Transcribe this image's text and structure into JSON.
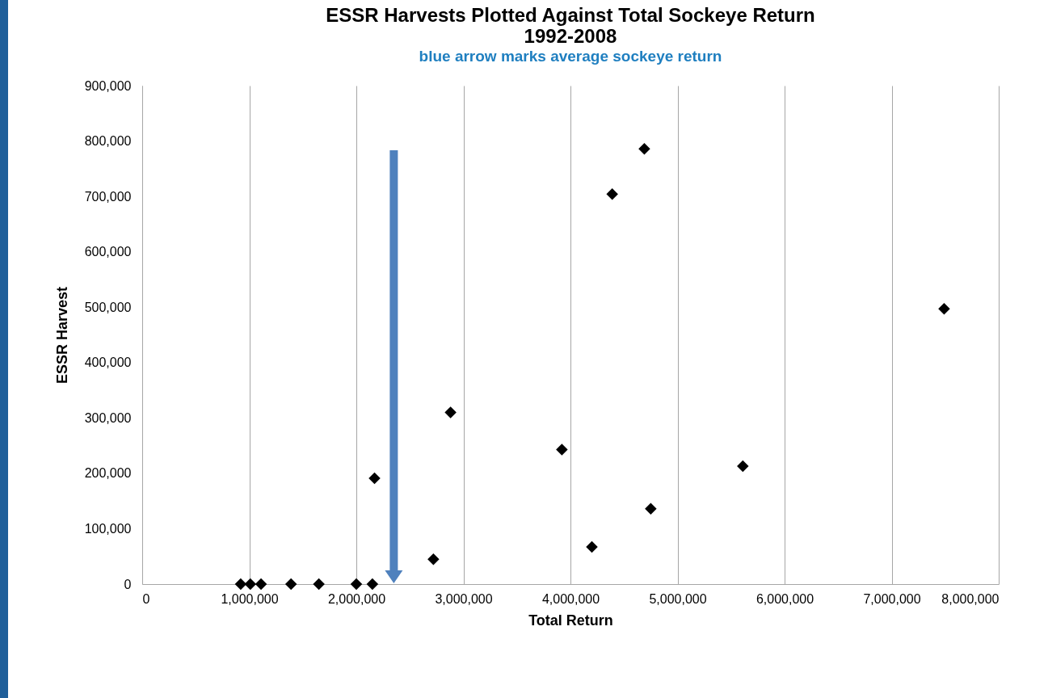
{
  "chart_data": {
    "type": "scatter",
    "title": [
      "ESSR Harvests Plotted Against Total Sockeye Return",
      "1992-2008"
    ],
    "subtitle": "blue arrow marks average sockeye return",
    "xlabel": "Total Return",
    "ylabel": "ESSR Harvest",
    "x": [
      920000,
      1010000,
      1110000,
      1390000,
      1650000,
      2000000,
      2150000,
      2170000,
      2720000,
      2880000,
      3920000,
      4200000,
      4390000,
      4690000,
      4750000,
      5610000,
      7490000
    ],
    "series": [
      {
        "color": "#000000",
        "values": [
          0,
          0,
          0,
          0,
          0,
          0,
          0,
          191000,
          45000,
          310000,
          243000,
          67000,
          704000,
          786000,
          136000,
          213000,
          497000
        ]
      }
    ],
    "xlim": [
      0,
      8000000
    ],
    "xticks": [
      0,
      {
        "value": 1000000,
        "label": "1,000,000"
      },
      {
        "value": 2000000,
        "label": "2,000,000"
      },
      {
        "value": 3000000,
        "label": "3,000,000"
      },
      {
        "value": 4000000,
        "label": "4,000,000"
      },
      {
        "value": 5000000,
        "label": "5,000,000"
      },
      {
        "value": 6000000,
        "label": "6,000,000"
      },
      {
        "value": 7000000,
        "label": "7,000,000"
      },
      {
        "value": 8000000,
        "label": "8,000,000"
      }
    ],
    "ylim": [
      0,
      900000
    ],
    "yticks": [
      0,
      {
        "value": 100000,
        "label": "100,000"
      },
      {
        "value": 200000,
        "label": "200,000"
      },
      {
        "value": 300000,
        "label": "300,000"
      },
      {
        "value": 400000,
        "label": "400,000"
      },
      {
        "value": 500000,
        "label": "500,000"
      },
      {
        "value": 600000,
        "label": "600,000"
      },
      {
        "value": 700000,
        "label": "700,000"
      },
      {
        "value": 800000,
        "label": "800,000"
      },
      {
        "value": 900000,
        "label": "900,000"
      }
    ],
    "ref_lines": [
      {
        "axis": "x",
        "value": 2350000,
        "color": "#4f81bd"
      }
    ],
    "grid": "x",
    "marker": "diamond",
    "legend": false
  }
}
